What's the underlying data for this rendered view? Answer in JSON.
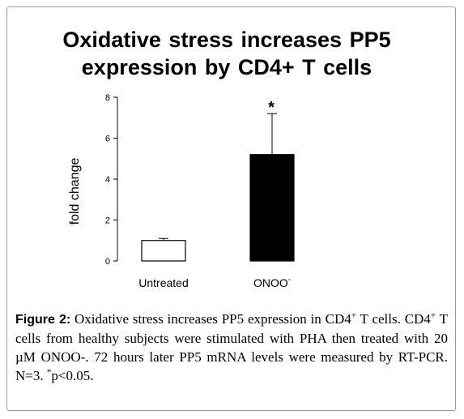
{
  "chart_data": {
    "type": "bar",
    "title": "Oxidative stress increases PP5 expression by CD4+ T cells",
    "title_lines": [
      "Oxidative stress increases PP5",
      "expression by CD4+ T cells"
    ],
    "categories": [
      "Untreated",
      "ONOO-"
    ],
    "category_labels": [
      {
        "base": "Untreated",
        "sup": ""
      },
      {
        "base": "ONOO",
        "sup": "-"
      }
    ],
    "values": [
      1.0,
      5.2
    ],
    "error_upper": [
      0.1,
      2.0
    ],
    "bar_fills": [
      "#ffffff",
      "#000000"
    ],
    "significance": [
      "",
      "*"
    ],
    "xlabel": "",
    "ylabel": "fold change",
    "ylim": [
      0,
      8
    ],
    "yticks": [
      0,
      2,
      4,
      6,
      8
    ],
    "grid": false,
    "legend": "none"
  },
  "caption": {
    "label": "Figure 2:",
    "segments": [
      {
        "text": " Oxidative stress increases PP5 expression in CD4",
        "sup": false
      },
      {
        "text": "+",
        "sup": true
      },
      {
        "text": " T cells. CD4",
        "sup": false
      },
      {
        "text": "+",
        "sup": true
      },
      {
        "text": " T cells from healthy subjects were stimulated with PHA then treated with 20 µM ONOO-. 72 hours later PP5 mRNA levels were measured by RT-PCR. N=3. ",
        "sup": false
      },
      {
        "text": "*",
        "sup": true
      },
      {
        "text": "p<0.05.",
        "sup": false
      }
    ]
  }
}
